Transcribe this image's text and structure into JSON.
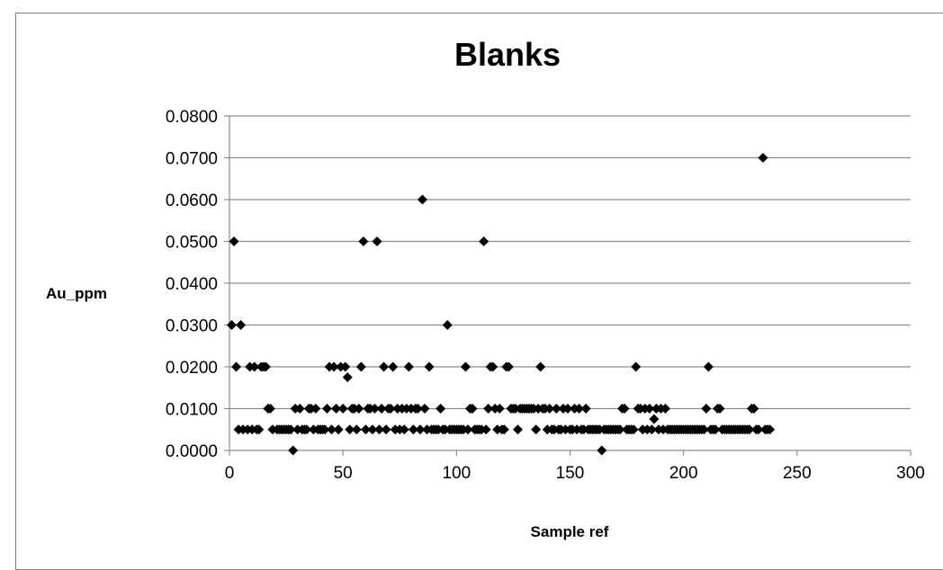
{
  "chart_data": {
    "type": "scatter",
    "title": "Blanks",
    "xlabel": "Sample ref",
    "ylabel": "Au_ppm",
    "xlim": [
      0,
      300
    ],
    "ylim": [
      0,
      0.08
    ],
    "xticks": [
      "0",
      "50",
      "100",
      "150",
      "200",
      "250",
      "300"
    ],
    "yticks": [
      "0.0000",
      "0.0100",
      "0.0200",
      "0.0300",
      "0.0400",
      "0.0500",
      "0.0600",
      "0.0700",
      "0.0800"
    ],
    "grid": "horizontal",
    "legend": "none",
    "marker": "diamond",
    "marker_color": "#000000",
    "series": [
      {
        "points": [
          [
            1,
            0.03
          ],
          [
            2,
            0.05
          ],
          [
            3,
            0.02
          ],
          [
            4,
            0.005
          ],
          [
            5,
            0.03
          ],
          [
            6,
            0.005
          ],
          [
            8,
            0.005
          ],
          [
            9,
            0.02
          ],
          [
            10,
            0.005
          ],
          [
            11,
            0.02
          ],
          [
            12,
            0.005
          ],
          [
            13,
            0.005
          ],
          [
            14,
            0.02
          ],
          [
            15,
            0.02
          ],
          [
            16,
            0.02
          ],
          [
            17,
            0.01
          ],
          [
            18,
            0.01
          ],
          [
            19,
            0.005
          ],
          [
            21,
            0.005
          ],
          [
            22,
            0.005
          ],
          [
            23,
            0.005
          ],
          [
            24,
            0.005
          ],
          [
            25,
            0.005
          ],
          [
            26,
            0.005
          ],
          [
            27,
            0.005
          ],
          [
            28,
            0.0
          ],
          [
            29,
            0.01
          ],
          [
            30,
            0.005
          ],
          [
            31,
            0.01
          ],
          [
            32,
            0.005
          ],
          [
            33,
            0.005
          ],
          [
            34,
            0.005
          ],
          [
            35,
            0.01
          ],
          [
            36,
            0.01
          ],
          [
            37,
            0.005
          ],
          [
            38,
            0.01
          ],
          [
            39,
            0.005
          ],
          [
            40,
            0.005
          ],
          [
            41,
            0.005
          ],
          [
            42,
            0.005
          ],
          [
            43,
            0.01
          ],
          [
            44,
            0.02
          ],
          [
            45,
            0.005
          ],
          [
            46,
            0.02
          ],
          [
            47,
            0.01
          ],
          [
            48,
            0.005
          ],
          [
            49,
            0.02
          ],
          [
            50,
            0.01
          ],
          [
            51,
            0.02
          ],
          [
            52,
            0.0175
          ],
          [
            53,
            0.005
          ],
          [
            54,
            0.01
          ],
          [
            55,
            0.01
          ],
          [
            56,
            0.005
          ],
          [
            57,
            0.01
          ],
          [
            58,
            0.02
          ],
          [
            59,
            0.05
          ],
          [
            60,
            0.005
          ],
          [
            61,
            0.01
          ],
          [
            62,
            0.01
          ],
          [
            63,
            0.005
          ],
          [
            64,
            0.01
          ],
          [
            65,
            0.05
          ],
          [
            66,
            0.005
          ],
          [
            67,
            0.01
          ],
          [
            68,
            0.02
          ],
          [
            69,
            0.005
          ],
          [
            70,
            0.01
          ],
          [
            71,
            0.01
          ],
          [
            72,
            0.02
          ],
          [
            73,
            0.005
          ],
          [
            74,
            0.01
          ],
          [
            75,
            0.005
          ],
          [
            76,
            0.01
          ],
          [
            77,
            0.005
          ],
          [
            78,
            0.01
          ],
          [
            79,
            0.02
          ],
          [
            80,
            0.01
          ],
          [
            81,
            0.005
          ],
          [
            82,
            0.01
          ],
          [
            83,
            0.01
          ],
          [
            84,
            0.005
          ],
          [
            85,
            0.06
          ],
          [
            86,
            0.01
          ],
          [
            87,
            0.005
          ],
          [
            88,
            0.02
          ],
          [
            89,
            0.005
          ],
          [
            90,
            0.005
          ],
          [
            91,
            0.005
          ],
          [
            92,
            0.005
          ],
          [
            93,
            0.01
          ],
          [
            94,
            0.005
          ],
          [
            95,
            0.005
          ],
          [
            96,
            0.03
          ],
          [
            97,
            0.005
          ],
          [
            98,
            0.005
          ],
          [
            99,
            0.005
          ],
          [
            100,
            0.005
          ],
          [
            101,
            0.005
          ],
          [
            102,
            0.005
          ],
          [
            103,
            0.005
          ],
          [
            104,
            0.02
          ],
          [
            105,
            0.005
          ],
          [
            106,
            0.01
          ],
          [
            107,
            0.01
          ],
          [
            108,
            0.005
          ],
          [
            109,
            0.005
          ],
          [
            110,
            0.005
          ],
          [
            111,
            0.005
          ],
          [
            112,
            0.05
          ],
          [
            113,
            0.005
          ],
          [
            114,
            0.01
          ],
          [
            115,
            0.02
          ],
          [
            116,
            0.02
          ],
          [
            117,
            0.01
          ],
          [
            118,
            0.005
          ],
          [
            119,
            0.01
          ],
          [
            120,
            0.005
          ],
          [
            121,
            0.005
          ],
          [
            122,
            0.02
          ],
          [
            123,
            0.02
          ],
          [
            124,
            0.01
          ],
          [
            125,
            0.01
          ],
          [
            126,
            0.01
          ],
          [
            127,
            0.005
          ],
          [
            128,
            0.01
          ],
          [
            129,
            0.01
          ],
          [
            130,
            0.01
          ],
          [
            131,
            0.01
          ],
          [
            132,
            0.01
          ],
          [
            133,
            0.01
          ],
          [
            134,
            0.01
          ],
          [
            135,
            0.005
          ],
          [
            136,
            0.01
          ],
          [
            137,
            0.02
          ],
          [
            138,
            0.01
          ],
          [
            139,
            0.01
          ],
          [
            140,
            0.005
          ],
          [
            141,
            0.01
          ],
          [
            142,
            0.005
          ],
          [
            143,
            0.005
          ],
          [
            144,
            0.01
          ],
          [
            145,
            0.005
          ],
          [
            146,
            0.005
          ],
          [
            147,
            0.01
          ],
          [
            148,
            0.005
          ],
          [
            149,
            0.01
          ],
          [
            150,
            0.005
          ],
          [
            151,
            0.005
          ],
          [
            152,
            0.01
          ],
          [
            153,
            0.005
          ],
          [
            154,
            0.01
          ],
          [
            155,
            0.005
          ],
          [
            156,
            0.005
          ],
          [
            157,
            0.01
          ],
          [
            158,
            0.005
          ],
          [
            159,
            0.005
          ],
          [
            160,
            0.005
          ],
          [
            161,
            0.005
          ],
          [
            162,
            0.005
          ],
          [
            163,
            0.005
          ],
          [
            164,
            0.0
          ],
          [
            165,
            0.005
          ],
          [
            166,
            0.005
          ],
          [
            167,
            0.005
          ],
          [
            168,
            0.005
          ],
          [
            169,
            0.005
          ],
          [
            170,
            0.005
          ],
          [
            171,
            0.005
          ],
          [
            172,
            0.005
          ],
          [
            173,
            0.01
          ],
          [
            174,
            0.01
          ],
          [
            175,
            0.005
          ],
          [
            176,
            0.005
          ],
          [
            177,
            0.005
          ],
          [
            178,
            0.005
          ],
          [
            179,
            0.02
          ],
          [
            180,
            0.01
          ],
          [
            181,
            0.01
          ],
          [
            182,
            0.005
          ],
          [
            183,
            0.01
          ],
          [
            184,
            0.005
          ],
          [
            185,
            0.01
          ],
          [
            186,
            0.005
          ],
          [
            187,
            0.0075
          ],
          [
            188,
            0.01
          ],
          [
            189,
            0.005
          ],
          [
            190,
            0.01
          ],
          [
            191,
            0.005
          ],
          [
            192,
            0.01
          ],
          [
            193,
            0.005
          ],
          [
            194,
            0.005
          ],
          [
            195,
            0.005
          ],
          [
            196,
            0.005
          ],
          [
            197,
            0.005
          ],
          [
            198,
            0.005
          ],
          [
            199,
            0.005
          ],
          [
            200,
            0.005
          ],
          [
            201,
            0.005
          ],
          [
            202,
            0.005
          ],
          [
            203,
            0.005
          ],
          [
            204,
            0.005
          ],
          [
            205,
            0.005
          ],
          [
            206,
            0.005
          ],
          [
            207,
            0.005
          ],
          [
            208,
            0.005
          ],
          [
            209,
            0.005
          ],
          [
            210,
            0.01
          ],
          [
            211,
            0.02
          ],
          [
            212,
            0.005
          ],
          [
            213,
            0.005
          ],
          [
            214,
            0.005
          ],
          [
            215,
            0.01
          ],
          [
            216,
            0.01
          ],
          [
            217,
            0.005
          ],
          [
            218,
            0.005
          ],
          [
            219,
            0.005
          ],
          [
            220,
            0.005
          ],
          [
            221,
            0.005
          ],
          [
            222,
            0.005
          ],
          [
            223,
            0.005
          ],
          [
            224,
            0.005
          ],
          [
            225,
            0.005
          ],
          [
            226,
            0.005
          ],
          [
            227,
            0.005
          ],
          [
            228,
            0.005
          ],
          [
            229,
            0.005
          ],
          [
            230,
            0.01
          ],
          [
            231,
            0.01
          ],
          [
            232,
            0.005
          ],
          [
            233,
            0.005
          ],
          [
            235,
            0.07
          ],
          [
            236,
            0.005
          ],
          [
            237,
            0.005
          ],
          [
            238,
            0.005
          ]
        ]
      }
    ]
  }
}
